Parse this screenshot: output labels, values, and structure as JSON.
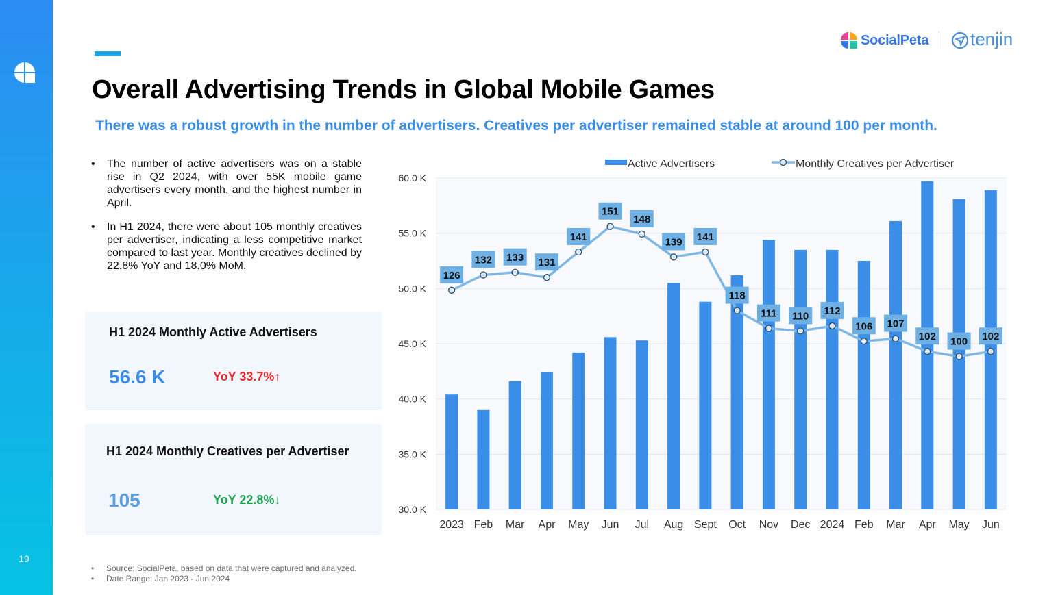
{
  "page_number": "19",
  "brand": {
    "primary": "SocialPeta",
    "secondary": "tenjin"
  },
  "title": "Overall Advertising Trends in Global Mobile Games",
  "subtitle": "There was a robust growth in the number of advertisers. Creatives per advertiser remained stable at around 100 per month.",
  "bullets": [
    "The number of active advertisers was on a stable rise in Q2 2024, with over 55K mobile game advertisers every month, and the highest number in April.",
    "In H1 2024, there were about 105 monthly creatives per advertiser, indicating a less competitive market compared to last year. Monthly creatives declined by 22.8% YoY and 18.0% MoM."
  ],
  "cards": [
    {
      "title": "H1 2024 Monthly Active Advertisers",
      "value": "56.6 K",
      "yoy": "YoY 33.7%↑",
      "yoy_color": "#e8262b"
    },
    {
      "title": "H1 2024 Monthly Creatives per Advertiser",
      "value": "105",
      "yoy": "YoY 22.8%↓",
      "yoy_color": "#1ea450"
    }
  ],
  "notes": [
    "Source: SocialPeta, based on data that were captured and analyzed.",
    "Date Range: Jan 2023 - Jun 2024"
  ],
  "chart_data": {
    "type": "bar",
    "categories": [
      "2023",
      "Feb",
      "Mar",
      "Apr",
      "May",
      "Jun",
      "Jul",
      "Aug",
      "Sept",
      "Oct",
      "Nov",
      "Dec",
      "2024",
      "Feb",
      "Mar",
      "Apr",
      "May",
      "Jun"
    ],
    "y_ticks": [
      "30.0 K",
      "35.0 K",
      "40.0 K",
      "45.0 K",
      "50.0 K",
      "55.0 K",
      "60.0 K"
    ],
    "ylim": [
      30,
      60
    ],
    "y_unit": "K",
    "grid": true,
    "legend_position": "top",
    "series": [
      {
        "name": "Active Advertisers",
        "type": "bar",
        "color": "#3a8ee8",
        "values": [
          40.4,
          39.0,
          41.6,
          42.4,
          44.2,
          45.6,
          45.3,
          50.5,
          48.8,
          51.2,
          54.4,
          53.5,
          53.5,
          52.5,
          56.1,
          59.7,
          58.1,
          58.9
        ]
      },
      {
        "name": "Monthly Creatives per Advertiser",
        "type": "line",
        "color": "#7fb8e6",
        "label_bg": "#6fb0e4",
        "values": [
          126,
          132,
          133,
          131,
          141,
          151,
          148,
          139,
          141,
          118,
          111,
          110,
          112,
          106,
          107,
          102,
          100,
          102
        ],
        "labels": [
          "126",
          "132",
          "133",
          "131",
          "141",
          "151",
          "148",
          "139",
          "141",
          "118",
          "111",
          "110",
          "112",
          "106",
          "107",
          "102",
          "100",
          "102"
        ],
        "line_ylim": [
          40,
          170
        ]
      }
    ]
  }
}
